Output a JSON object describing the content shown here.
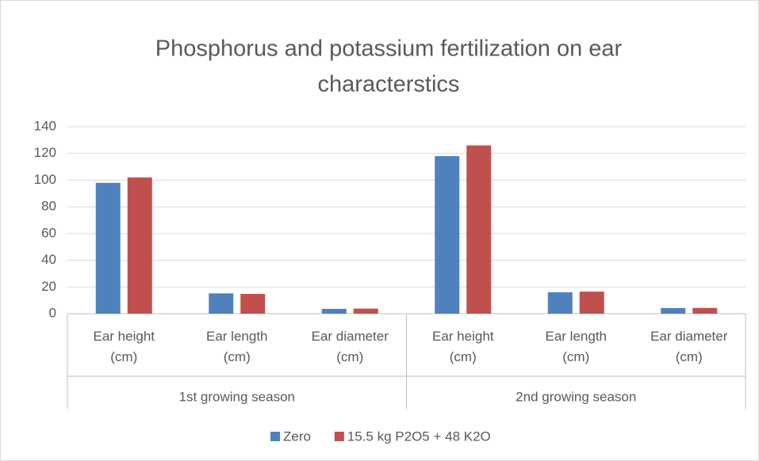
{
  "chart_data": {
    "type": "bar",
    "title": [
      "Phosphorus and potassium fertilization on ear",
      "characterstics"
    ],
    "categories": [
      "Ear height (cm)",
      "Ear length (cm)",
      "Ear diameter (cm)",
      "Ear height (cm)",
      "Ear length (cm)",
      "Ear diameter (cm)"
    ],
    "category_groups": [
      "1st growing season",
      "2nd growing season"
    ],
    "series": [
      {
        "name": "Zero",
        "color": "#4f81bd",
        "values": [
          98,
          15.2,
          3.6,
          118,
          16,
          4.2
        ]
      },
      {
        "name": "15.5 kg P2O5 + 48 K2O",
        "color": "#c0504d",
        "values": [
          102,
          14.8,
          3.8,
          126,
          16.5,
          4.3
        ]
      }
    ],
    "ylim": [
      0,
      140
    ],
    "yticks": [
      0,
      20,
      40,
      60,
      80,
      100,
      120,
      140
    ],
    "grid": true,
    "legend": "bottom"
  }
}
